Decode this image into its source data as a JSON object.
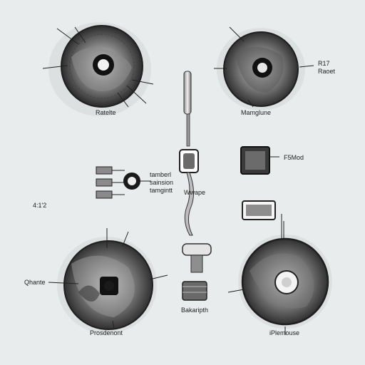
{
  "labels": {
    "top_left_caption": "Ratelte",
    "top_right_caption": "Mamglune",
    "top_right_note_1": "R17",
    "top_right_note_2": "Raoet",
    "block_label": "F5Mod",
    "side_note": "4:1'2",
    "spring_label_1": "tamberl",
    "spring_label_2": "sainsion",
    "spring_label_3": "tamgintt",
    "center_label": "Wwape",
    "bottom_left_side": "Qhante",
    "bottom_left_caption": "Prosdenont",
    "bottom_center_caption": "Bakaripth",
    "bottom_right_caption": "iPlemouse"
  },
  "colors": {
    "background": "#e9ecec",
    "ink": "#1f1f1f",
    "shade": "#6c6c6c",
    "light_shade": "#b9bcbc"
  }
}
